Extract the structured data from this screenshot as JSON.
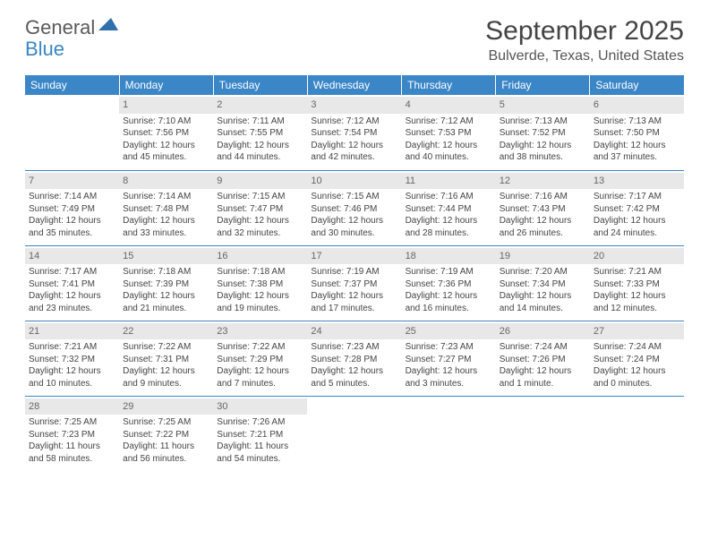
{
  "logo": {
    "text1": "General",
    "text2": "Blue",
    "icon_color": "#2f6fab"
  },
  "header": {
    "month": "September 2025",
    "location": "Bulverde, Texas, United States"
  },
  "styles": {
    "header_bg": "#3b86c6",
    "header_text": "#ffffff",
    "day_header_bg": "#e8e8e8",
    "day_header_text": "#666666",
    "row_border": "#3b86c6",
    "body_text": "#444444",
    "title_color": "#444444",
    "location_color": "#555555",
    "font_family": "Arial",
    "cell_fontsize": 10,
    "dayheader_fontsize": 11,
    "weekday_fontsize": 12,
    "month_fontsize": 30,
    "location_fontsize": 16
  },
  "weekdays": [
    "Sunday",
    "Monday",
    "Tuesday",
    "Wednesday",
    "Thursday",
    "Friday",
    "Saturday"
  ],
  "weeks": [
    [
      null,
      {
        "d": "1",
        "sr": "Sunrise: 7:10 AM",
        "ss": "Sunset: 7:56 PM",
        "dl": "Daylight: 12 hours and 45 minutes."
      },
      {
        "d": "2",
        "sr": "Sunrise: 7:11 AM",
        "ss": "Sunset: 7:55 PM",
        "dl": "Daylight: 12 hours and 44 minutes."
      },
      {
        "d": "3",
        "sr": "Sunrise: 7:12 AM",
        "ss": "Sunset: 7:54 PM",
        "dl": "Daylight: 12 hours and 42 minutes."
      },
      {
        "d": "4",
        "sr": "Sunrise: 7:12 AM",
        "ss": "Sunset: 7:53 PM",
        "dl": "Daylight: 12 hours and 40 minutes."
      },
      {
        "d": "5",
        "sr": "Sunrise: 7:13 AM",
        "ss": "Sunset: 7:52 PM",
        "dl": "Daylight: 12 hours and 38 minutes."
      },
      {
        "d": "6",
        "sr": "Sunrise: 7:13 AM",
        "ss": "Sunset: 7:50 PM",
        "dl": "Daylight: 12 hours and 37 minutes."
      }
    ],
    [
      {
        "d": "7",
        "sr": "Sunrise: 7:14 AM",
        "ss": "Sunset: 7:49 PM",
        "dl": "Daylight: 12 hours and 35 minutes."
      },
      {
        "d": "8",
        "sr": "Sunrise: 7:14 AM",
        "ss": "Sunset: 7:48 PM",
        "dl": "Daylight: 12 hours and 33 minutes."
      },
      {
        "d": "9",
        "sr": "Sunrise: 7:15 AM",
        "ss": "Sunset: 7:47 PM",
        "dl": "Daylight: 12 hours and 32 minutes."
      },
      {
        "d": "10",
        "sr": "Sunrise: 7:15 AM",
        "ss": "Sunset: 7:46 PM",
        "dl": "Daylight: 12 hours and 30 minutes."
      },
      {
        "d": "11",
        "sr": "Sunrise: 7:16 AM",
        "ss": "Sunset: 7:44 PM",
        "dl": "Daylight: 12 hours and 28 minutes."
      },
      {
        "d": "12",
        "sr": "Sunrise: 7:16 AM",
        "ss": "Sunset: 7:43 PM",
        "dl": "Daylight: 12 hours and 26 minutes."
      },
      {
        "d": "13",
        "sr": "Sunrise: 7:17 AM",
        "ss": "Sunset: 7:42 PM",
        "dl": "Daylight: 12 hours and 24 minutes."
      }
    ],
    [
      {
        "d": "14",
        "sr": "Sunrise: 7:17 AM",
        "ss": "Sunset: 7:41 PM",
        "dl": "Daylight: 12 hours and 23 minutes."
      },
      {
        "d": "15",
        "sr": "Sunrise: 7:18 AM",
        "ss": "Sunset: 7:39 PM",
        "dl": "Daylight: 12 hours and 21 minutes."
      },
      {
        "d": "16",
        "sr": "Sunrise: 7:18 AM",
        "ss": "Sunset: 7:38 PM",
        "dl": "Daylight: 12 hours and 19 minutes."
      },
      {
        "d": "17",
        "sr": "Sunrise: 7:19 AM",
        "ss": "Sunset: 7:37 PM",
        "dl": "Daylight: 12 hours and 17 minutes."
      },
      {
        "d": "18",
        "sr": "Sunrise: 7:19 AM",
        "ss": "Sunset: 7:36 PM",
        "dl": "Daylight: 12 hours and 16 minutes."
      },
      {
        "d": "19",
        "sr": "Sunrise: 7:20 AM",
        "ss": "Sunset: 7:34 PM",
        "dl": "Daylight: 12 hours and 14 minutes."
      },
      {
        "d": "20",
        "sr": "Sunrise: 7:21 AM",
        "ss": "Sunset: 7:33 PM",
        "dl": "Daylight: 12 hours and 12 minutes."
      }
    ],
    [
      {
        "d": "21",
        "sr": "Sunrise: 7:21 AM",
        "ss": "Sunset: 7:32 PM",
        "dl": "Daylight: 12 hours and 10 minutes."
      },
      {
        "d": "22",
        "sr": "Sunrise: 7:22 AM",
        "ss": "Sunset: 7:31 PM",
        "dl": "Daylight: 12 hours and 9 minutes."
      },
      {
        "d": "23",
        "sr": "Sunrise: 7:22 AM",
        "ss": "Sunset: 7:29 PM",
        "dl": "Daylight: 12 hours and 7 minutes."
      },
      {
        "d": "24",
        "sr": "Sunrise: 7:23 AM",
        "ss": "Sunset: 7:28 PM",
        "dl": "Daylight: 12 hours and 5 minutes."
      },
      {
        "d": "25",
        "sr": "Sunrise: 7:23 AM",
        "ss": "Sunset: 7:27 PM",
        "dl": "Daylight: 12 hours and 3 minutes."
      },
      {
        "d": "26",
        "sr": "Sunrise: 7:24 AM",
        "ss": "Sunset: 7:26 PM",
        "dl": "Daylight: 12 hours and 1 minute."
      },
      {
        "d": "27",
        "sr": "Sunrise: 7:24 AM",
        "ss": "Sunset: 7:24 PM",
        "dl": "Daylight: 12 hours and 0 minutes."
      }
    ],
    [
      {
        "d": "28",
        "sr": "Sunrise: 7:25 AM",
        "ss": "Sunset: 7:23 PM",
        "dl": "Daylight: 11 hours and 58 minutes."
      },
      {
        "d": "29",
        "sr": "Sunrise: 7:25 AM",
        "ss": "Sunset: 7:22 PM",
        "dl": "Daylight: 11 hours and 56 minutes."
      },
      {
        "d": "30",
        "sr": "Sunrise: 7:26 AM",
        "ss": "Sunset: 7:21 PM",
        "dl": "Daylight: 11 hours and 54 minutes."
      },
      null,
      null,
      null,
      null
    ]
  ]
}
